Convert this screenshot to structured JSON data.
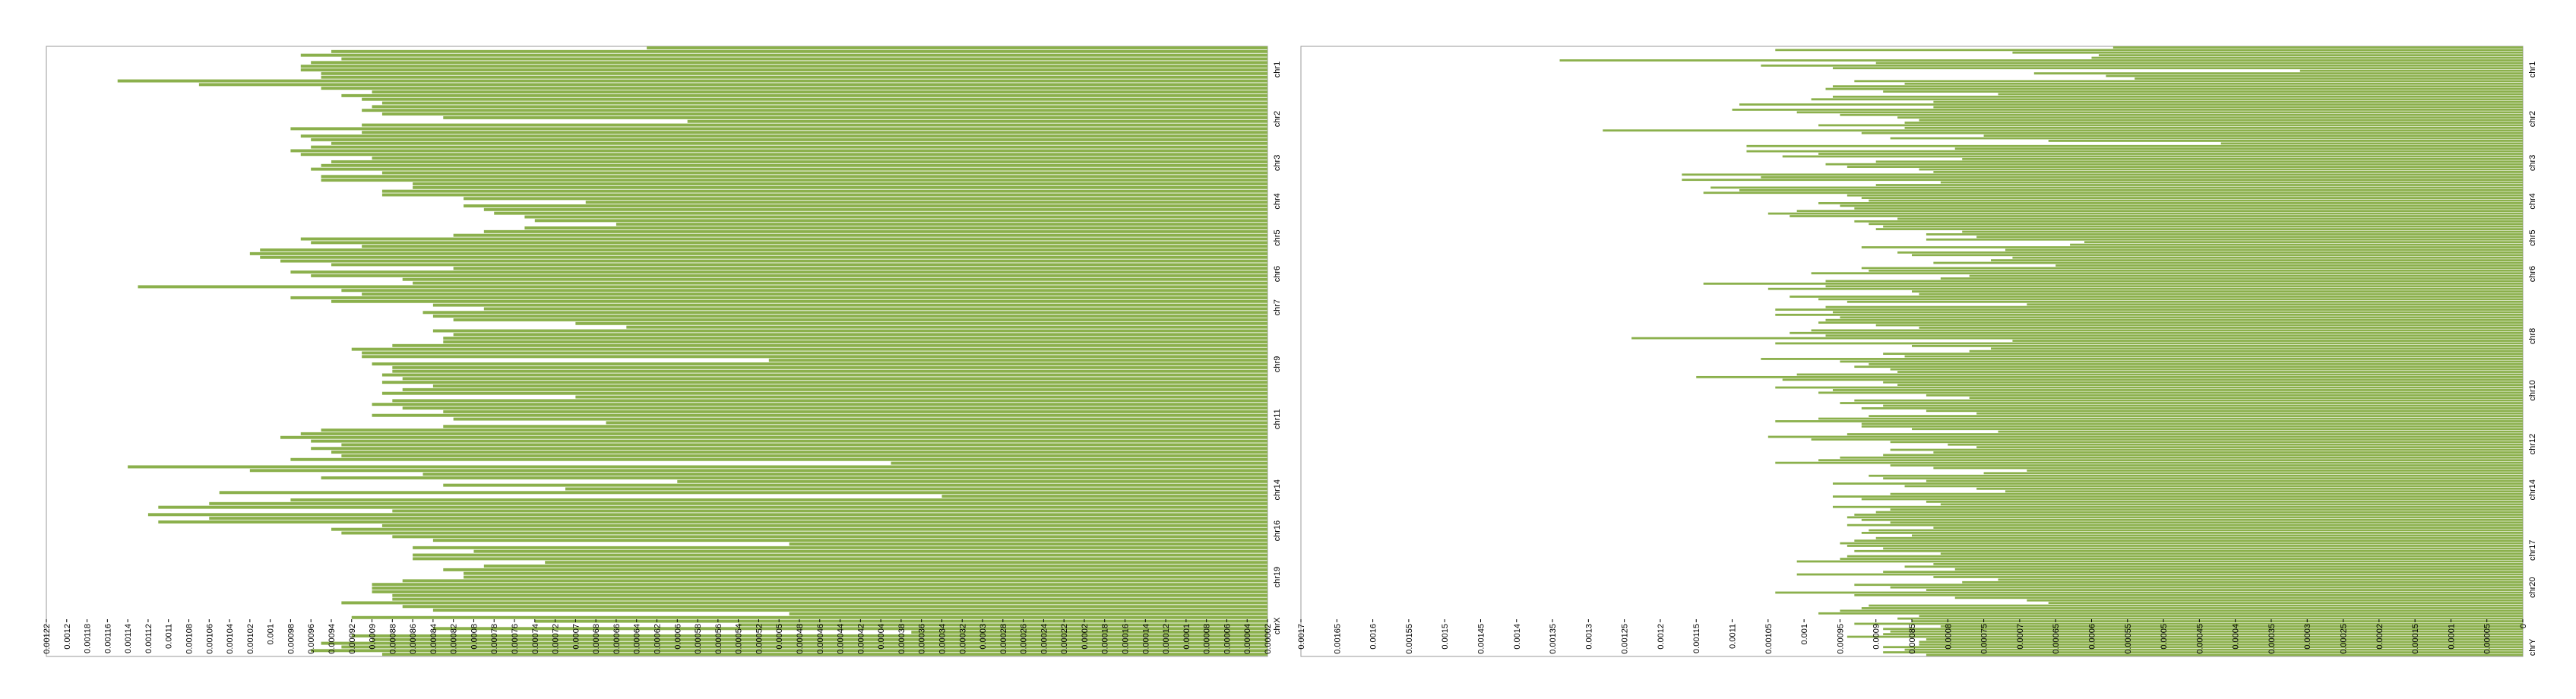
{
  "colors": {
    "bar": "#8BB04C",
    "frame": "#999999",
    "tick": "#000000"
  },
  "chart_data": [
    {
      "type": "bar",
      "orientation": "horizontal",
      "legend": "none",
      "grid": false,
      "xlim": [
        0.00122,
        2e-05
      ],
      "x_ticks": [
        "0.00122",
        "0.0012",
        "0.00118",
        "0.00116",
        "0.00114",
        "0.00112",
        "0.0011",
        "0.00108",
        "0.00106",
        "0.00104",
        "0.00102",
        "0.001",
        "0.00098",
        "0.00096",
        "0.00094",
        "0.00092",
        "0.0009",
        "0.00088",
        "0.00086",
        "0.00084",
        "0.00082",
        "0.0008",
        "0.00078",
        "0.00076",
        "0.00074",
        "0.00072",
        "0.0007",
        "0.00068",
        "0.00066",
        "0.00064",
        "0.00062",
        "0.0006",
        "0.00058",
        "0.00056",
        "0.00054",
        "0.00052",
        "0.0005",
        "0.00048",
        "0.00046",
        "0.00044",
        "0.00042",
        "0.0004",
        "0.00038",
        "0.00036",
        "0.00034",
        "0.00032",
        "0.0003",
        "0.00028",
        "0.00026",
        "0.00024",
        "0.00022",
        "0.0002",
        "0.00018",
        "0.00016",
        "0.00014",
        "0.00012",
        "0.0001",
        "0.00008",
        "0.00006",
        "0.00004",
        "0.00002"
      ],
      "row_labels": [
        "chr1",
        "chr2",
        "chr3",
        "chr4",
        "chr5",
        "chr6",
        "chr7",
        "chr9",
        "chr11",
        "chr14",
        "chr16",
        "chr19",
        "chrX"
      ],
      "label_positions": [
        0.038,
        0.119,
        0.191,
        0.254,
        0.314,
        0.373,
        0.428,
        0.521,
        0.611,
        0.727,
        0.794,
        0.87,
        0.95
      ],
      "values": [
        0.00063,
        0.00094,
        0.00097,
        0.00093,
        0.00096,
        0.00097,
        0.00097,
        0.00095,
        0.00095,
        0.00115,
        0.00107,
        0.00095,
        0.0009,
        0.00093,
        0.00091,
        0.00089,
        0.0009,
        0.00091,
        0.00089,
        0.00083,
        0.00059,
        0.00091,
        0.00098,
        0.00091,
        0.00097,
        0.00096,
        0.00094,
        0.00096,
        0.00098,
        0.00097,
        0.0009,
        0.00094,
        0.00095,
        0.00096,
        0.00089,
        0.00095,
        0.00095,
        0.00086,
        0.00086,
        0.00089,
        0.00089,
        0.00081,
        0.00069,
        0.00081,
        0.00079,
        0.00078,
        0.00075,
        0.00074,
        0.00066,
        0.00075,
        0.00079,
        0.00082,
        0.00097,
        0.00096,
        0.00091,
        0.00101,
        0.00102,
        0.00101,
        0.00099,
        0.00094,
        0.00082,
        0.00098,
        0.00096,
        0.00087,
        0.00086,
        0.00113,
        0.00093,
        0.00091,
        0.00098,
        0.00094,
        0.00084,
        0.00079,
        0.00085,
        0.00084,
        0.00082,
        0.0007,
        0.00065,
        0.00084,
        0.00082,
        0.00083,
        0.00083,
        0.00088,
        0.00092,
        0.00091,
        0.00091,
        0.00051,
        0.0009,
        0.00088,
        0.00088,
        0.00089,
        0.00087,
        0.00089,
        0.00084,
        0.00087,
        0.00089,
        0.0007,
        0.00088,
        0.0009,
        0.00087,
        0.00083,
        0.0009,
        0.00082,
        0.00067,
        0.00083,
        0.00095,
        0.00097,
        0.00099,
        0.00096,
        0.00093,
        0.00096,
        0.00094,
        0.00093,
        0.00098,
        0.00039,
        0.00114,
        0.00102,
        0.00085,
        0.00095,
        0.0006,
        0.00083,
        0.00071,
        0.00105,
        0.00034,
        0.00098,
        0.00106,
        0.00111,
        0.00088,
        0.00112,
        0.00106,
        0.00111,
        0.00089,
        0.00094,
        0.00093,
        0.00088,
        0.00084,
        0.00049,
        0.00086,
        0.0008,
        0.00086,
        0.00086,
        0.00073,
        0.00079,
        0.00083,
        0.00081,
        0.00081,
        0.00087,
        0.0009,
        0.0009,
        0.0009,
        0.00088,
        0.00088,
        0.00093,
        0.00087,
        0.00084,
        0.00049,
        0.00092,
        0.00074,
        0.00054,
        0.00084,
        0.00037,
        0.00092,
        0.0009,
        0.00095,
        0.00093,
        0.00096,
        0.00089
      ]
    },
    {
      "type": "bar",
      "orientation": "horizontal",
      "legend": "none",
      "grid": false,
      "xlim": [
        0.0017,
        0.0
      ],
      "x_ticks": [
        "0.0017",
        "0.00165",
        "0.0016",
        "0.00155",
        "0.0015",
        "0.00145",
        "0.0014",
        "0.00135",
        "0.0013",
        "0.00125",
        "0.0012",
        "0.00115",
        "0.0011",
        "0.00105",
        "0.001",
        "0.00095",
        "0.0009",
        "0.00085",
        "0.0008",
        "0.00075",
        "0.0007",
        "0.00065",
        "0.0006",
        "0.00055",
        "0.0005",
        "0.00045",
        "0.0004",
        "0.00035",
        "0.0003",
        "0.00025",
        "0.0002",
        "0.00015",
        "0.0001",
        "0.00005",
        "0"
      ],
      "row_labels": [
        "chr1",
        "chr2",
        "chr3",
        "chr4",
        "chr5",
        "chr6",
        "chr8",
        "chr10",
        "chr12",
        "chr14",
        "chr17",
        "chr20",
        "chrY"
      ],
      "label_positions": [
        0.038,
        0.119,
        0.191,
        0.254,
        0.314,
        0.373,
        0.475,
        0.564,
        0.652,
        0.727,
        0.826,
        0.887,
        0.985
      ],
      "values": [
        0.00057,
        0.00104,
        0.00071,
        0.00059,
        0.0006,
        0.00134,
        0.0009,
        0.00106,
        0.00096,
        0.00031,
        0.00068,
        0.00058,
        0.00054,
        0.00093,
        0.00086,
        0.00096,
        0.00097,
        0.00089,
        0.00073,
        0.00096,
        0.00099,
        0.00082,
        0.00109,
        0.00082,
        0.0011,
        0.00101,
        0.00095,
        0.00087,
        0.00084,
        0.00086,
        0.00098,
        0.00086,
        0.00128,
        0.00092,
        0.00075,
        0.00088,
        0.00066,
        0.00042,
        0.00108,
        0.00079,
        0.00108,
        0.00098,
        0.00103,
        0.00078,
        0.0009,
        0.00097,
        0.00094,
        0.00084,
        0.00082,
        0.00117,
        0.00106,
        0.00117,
        0.00081,
        0.0009,
        0.00113,
        0.00109,
        0.00114,
        0.00094,
        0.00092,
        0.00091,
        0.00098,
        0.00095,
        0.00093,
        0.00101,
        0.00105,
        0.00102,
        0.00087,
        0.00093,
        0.00091,
        0.00089,
        0.0009,
        0.00078,
        0.00083,
        0.00076,
        0.00083,
        0.00061,
        0.00063,
        0.00092,
        0.00072,
        0.00087,
        0.00085,
        0.00071,
        0.00074,
        0.00082,
        0.00065,
        0.00092,
        0.00091,
        0.00099,
        0.00077,
        0.00081,
        0.00097,
        0.00114,
        0.00097,
        0.00105,
        0.00085,
        0.00084,
        0.00102,
        0.00098,
        0.00094,
        0.00069,
        0.00097,
        0.00104,
        0.00096,
        0.00104,
        0.00095,
        0.00097,
        0.00098,
        0.0009,
        0.00084,
        0.00099,
        0.00102,
        0.00097,
        0.00124,
        0.00071,
        0.00104,
        0.00085,
        0.00074,
        0.00077,
        0.00089,
        0.00086,
        0.00106,
        0.00095,
        0.00091,
        0.00093,
        0.00088,
        0.00087,
        0.00101,
        0.00115,
        0.00103,
        0.00089,
        0.00087,
        0.00104,
        0.00096,
        0.00098,
        0.00083,
        0.00077,
        0.00093,
        0.00095,
        0.00089,
        0.00092,
        0.00083,
        0.00076,
        0.00091,
        0.00098,
        0.00104,
        0.00092,
        0.00092,
        0.00085,
        0.00073,
        0.00094,
        0.00105,
        0.00099,
        0.00088,
        0.0008,
        0.00076,
        0.00088,
        0.00082,
        0.00089,
        0.00095,
        0.00098,
        0.00104,
        0.00088,
        0.00082,
        0.00069,
        0.00075,
        0.00091,
        0.00089,
        0.00083,
        0.00096,
        0.00086,
        0.00076,
        0.00072,
        0.00088,
        0.00096,
        0.00092,
        0.00083,
        0.00081,
        0.00096,
        0.00088,
        0.0009,
        0.00093,
        0.00094,
        0.00092,
        0.00088,
        0.00094,
        0.00082,
        0.00091,
        0.00092,
        0.00085,
        0.0009,
        0.00093,
        0.00095,
        0.00094,
        0.00089,
        0.00093,
        0.00081,
        0.00094,
        0.00095,
        0.00101,
        0.00082,
        0.00086,
        0.00079,
        0.00089,
        0.00101,
        0.00082,
        0.00073,
        0.00078,
        0.00093,
        0.00088,
        0.00083,
        0.00104,
        0.00093,
        0.00079,
        0.00069,
        0.00066,
        0.00091,
        0.00092,
        0.00095,
        0.00098,
        0.00084,
        0.00087,
        0.00085,
        0.00093,
        0.00081,
        0.00089,
        0.00088,
        0.00089,
        0.00094,
        0.00083,
        0.00084,
        0.00084,
        0.00089,
        0.00086,
        0.00089,
        0.00083
      ]
    }
  ]
}
